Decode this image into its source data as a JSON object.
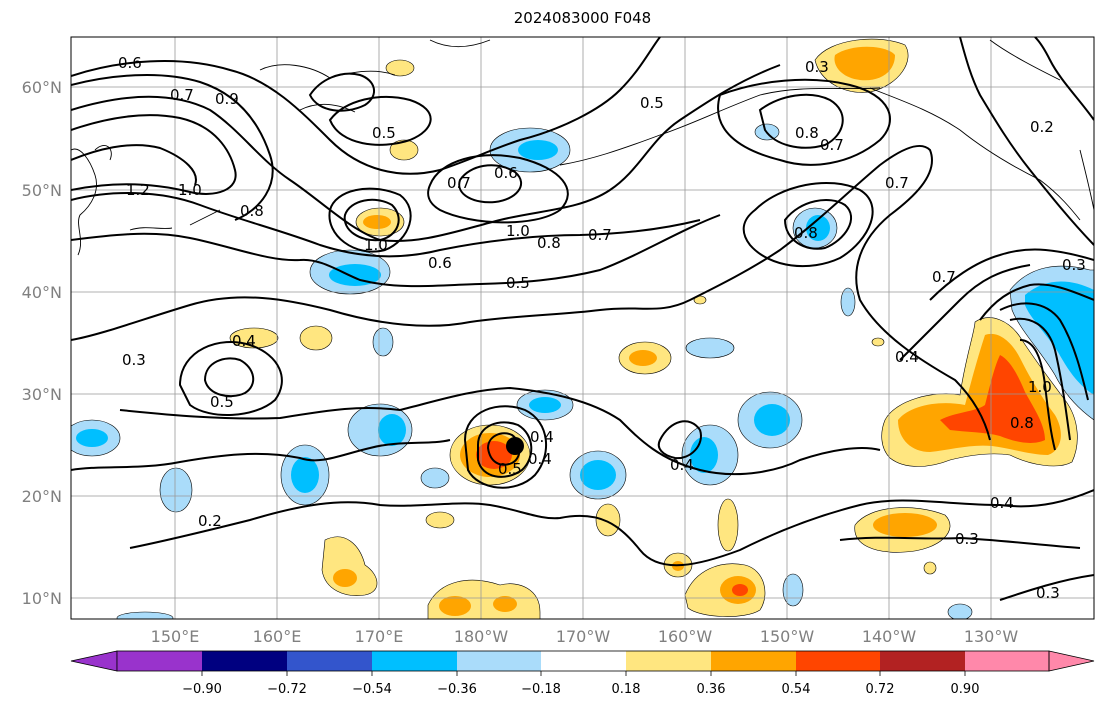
{
  "title": "2024083000 F048",
  "lat_labels": [
    "60°N",
    "50°N",
    "40°N",
    "30°N",
    "20°N",
    "10°N"
  ],
  "lon_labels": [
    "150°E",
    "160°E",
    "170°E",
    "180°W",
    "170°W",
    "160°W",
    "150°W",
    "140°W",
    "130°W"
  ],
  "colorbar": {
    "colors": [
      "#9933cc",
      "#000080",
      "#3355cc",
      "#00bfff",
      "#aadcfa",
      "#ffffff",
      "#ffe680",
      "#ffa500",
      "#ff4500",
      "#b22222",
      "#ff88aa"
    ],
    "tick_labels": [
      "−0.90",
      "−0.72",
      "−0.54",
      "−0.36",
      "−0.18",
      "0.18",
      "0.36",
      "0.54",
      "0.72",
      "0.90"
    ]
  },
  "contour_labels": [
    "0.6",
    "0.7",
    "0.9",
    "1.2",
    "1.0",
    "0.8",
    "0.5",
    "0.7",
    "0.6",
    "1.0",
    "1.0",
    "0.8",
    "0.7",
    "0.6",
    "0.5",
    "0.4",
    "0.3",
    "0.5",
    "0.4",
    "0.5",
    "0.4",
    "0.2",
    "0.4",
    "0.3",
    "0.8",
    "0.7",
    "0.8",
    "0.7",
    "0.4",
    "0.7",
    "1.0",
    "0.8",
    "0.4",
    "0.3",
    "0.3",
    "0.2",
    "0.3",
    "0.5"
  ],
  "marker": "tropical-cyclone-center"
}
